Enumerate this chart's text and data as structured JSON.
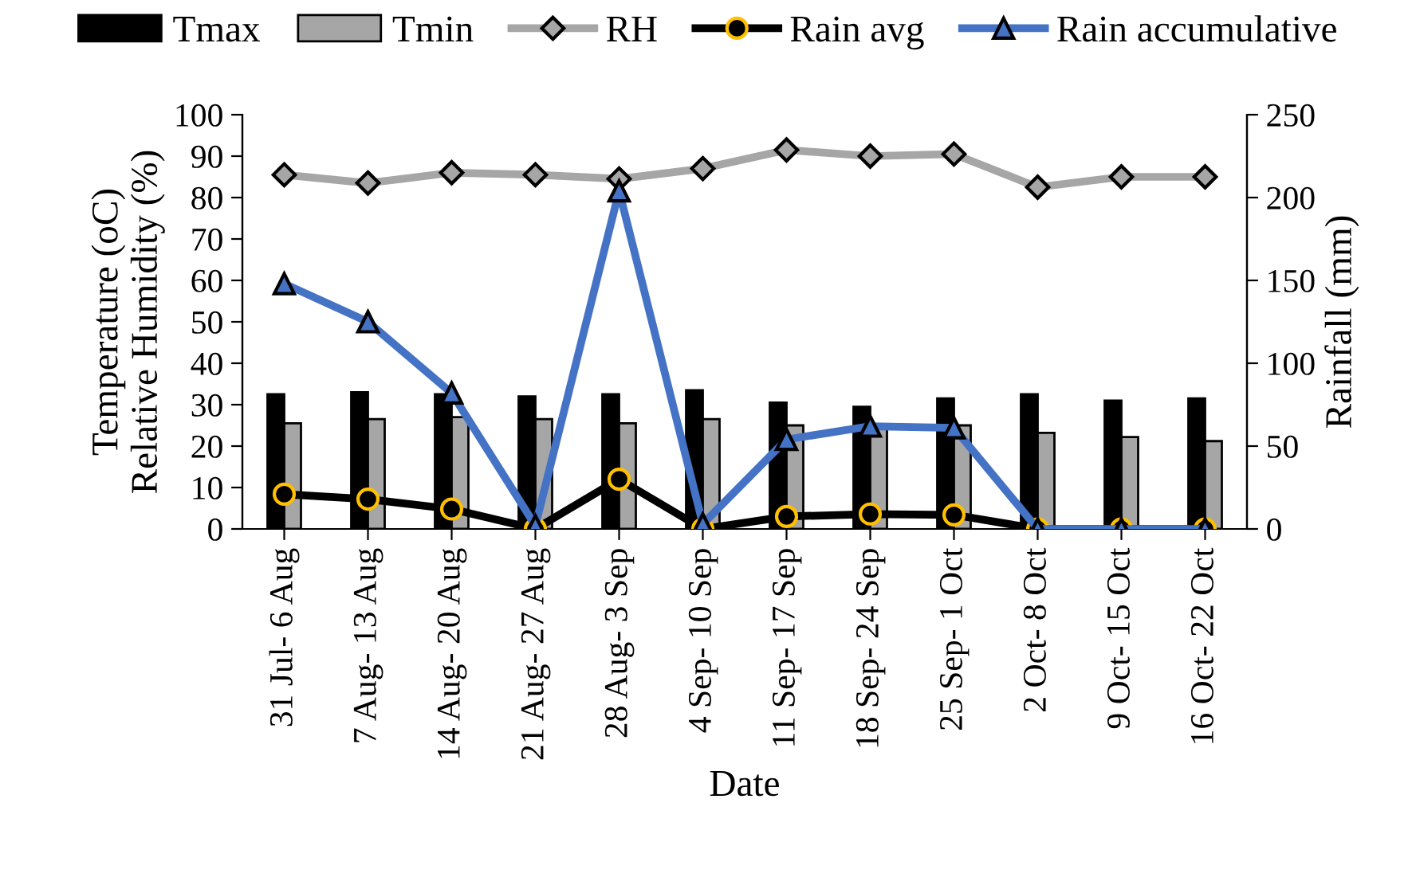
{
  "chart_data": {
    "type": "bar",
    "xlabel": "Date",
    "ylabel": "Temperature (oC)\nRelative Humidity (%)",
    "y2label": "Rainfall (mm)",
    "categories": [
      "31 Jul- 6 Aug",
      "7 Aug- 13 Aug",
      "14 Aug- 20 Aug",
      "21 Aug- 27 Aug",
      "28 Aug- 3 Sep",
      "4 Sep- 10 Sep",
      "11 Sep- 17 Sep",
      "18 Sep- 24 Sep",
      "25 Sep- 1 Oct",
      "2 Oct- 8 Oct",
      "9 Oct- 15 Oct",
      "16 Oct- 22 Oct"
    ],
    "series": [
      {
        "name": "Tmax",
        "color": "#000000",
        "values": [
          32.5,
          33,
          32.5,
          32,
          32.5,
          33.5,
          30.5,
          29.5,
          31.5,
          32.5,
          31,
          31.5
        ]
      },
      {
        "name": "Tmin",
        "color": "#a6a6a6",
        "values": [
          25.5,
          26.5,
          27,
          26.5,
          25.5,
          26.5,
          25,
          25,
          25,
          23.2,
          22.2,
          21.2
        ]
      },
      {
        "name": "RH",
        "type": "line",
        "color": "#a6a6a6",
        "marker": "diamond",
        "values": [
          85.5,
          83.5,
          86,
          85.5,
          84.5,
          87,
          91.5,
          90,
          90.5,
          82.5,
          85,
          85
        ]
      },
      {
        "name": "Rain avg",
        "type": "line",
        "color": "#000000",
        "marker": "circle",
        "axis": "y2",
        "values": [
          21,
          18,
          12,
          0,
          30,
          0,
          7.5,
          9,
          8.5,
          0,
          0,
          0
        ]
      },
      {
        "name": "Rain accumulative",
        "type": "line",
        "color": "#4472c4",
        "marker": "triangle",
        "axis": "y2",
        "values": [
          148,
          125,
          82,
          2,
          204,
          3,
          54,
          62,
          61,
          0,
          0,
          0
        ]
      }
    ],
    "ylim": [
      0,
      100
    ],
    "yticks": [
      0,
      10,
      20,
      30,
      40,
      50,
      60,
      70,
      80,
      90,
      100
    ],
    "y2lim": [
      0,
      250
    ],
    "y2ticks": [
      0,
      50,
      100,
      150,
      200,
      250
    ],
    "grid": false,
    "legend": "top"
  }
}
